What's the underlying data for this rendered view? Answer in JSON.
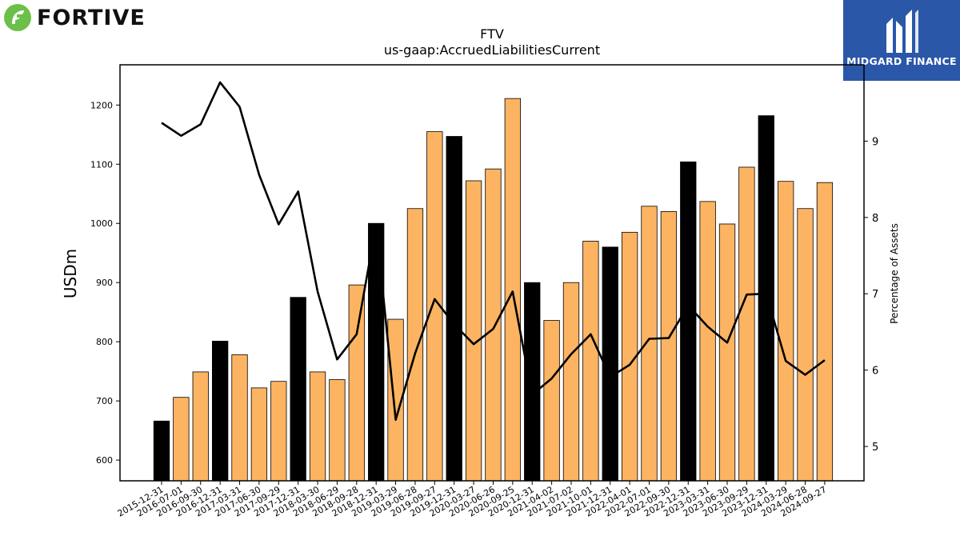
{
  "brand_left": {
    "name": "FORTIVE",
    "icon": "fortive-leaf-icon",
    "icon_color": "#6cc04a"
  },
  "brand_right": {
    "name": "MIDGARD FINANCE",
    "icon": "midgard-m-icon",
    "bg_color": "#2b57a8"
  },
  "chart_data": {
    "type": "bar",
    "title": "FTV",
    "subtitle": "us-gaap:AccruedLiabilitiesCurrent",
    "ylabel": "USDm",
    "y2label": "Percentage of Assets",
    "ylim": [
      565,
      1268
    ],
    "y2lim": [
      4.55,
      10.0
    ],
    "yticks": [
      600,
      700,
      800,
      900,
      1000,
      1100,
      1200
    ],
    "y2ticks": [
      5,
      6,
      7,
      8,
      9
    ],
    "colors": {
      "annual": "#000000",
      "quarter": "#fdb462",
      "line": "#000000"
    },
    "categories": [
      "2015-12-31",
      "2016-07-01",
      "2016-09-30",
      "2016-12-31",
      "2017-03-31",
      "2017-06-30",
      "2017-09-29",
      "2017-12-31",
      "2018-03-30",
      "2018-06-29",
      "2018-09-28",
      "2018-12-31",
      "2019-03-29",
      "2019-06-28",
      "2019-09-27",
      "2019-12-31",
      "2020-03-27",
      "2020-06-26",
      "2020-09-25",
      "2020-12-31",
      "2021-04-02",
      "2021-07-02",
      "2021-10-01",
      "2021-12-31",
      "2022-04-01",
      "2022-07-01",
      "2022-09-30",
      "2022-12-31",
      "2023-03-31",
      "2023-06-30",
      "2023-09-29",
      "2023-12-31",
      "2024-03-29",
      "2024-06-28",
      "2024-09-27"
    ],
    "series": [
      {
        "type": "bar",
        "values": [
          666,
          706,
          749,
          801,
          778,
          722,
          733,
          875,
          749,
          736,
          896,
          1000,
          838,
          1025,
          1155,
          1147,
          1072,
          1092,
          1211,
          900,
          836,
          900,
          970,
          960,
          985,
          1029,
          1020,
          1104,
          1037,
          999,
          1095,
          1182,
          1071,
          1025,
          1069
        ],
        "annual_flags": [
          1,
          0,
          0,
          1,
          0,
          0,
          0,
          1,
          0,
          0,
          0,
          1,
          0,
          0,
          0,
          1,
          0,
          0,
          0,
          1,
          0,
          0,
          0,
          1,
          0,
          0,
          0,
          1,
          0,
          0,
          0,
          1,
          0,
          0,
          0
        ]
      },
      {
        "type": "line",
        "axis": "right",
        "values": [
          9.24,
          9.07,
          9.22,
          9.77,
          9.45,
          8.56,
          7.91,
          8.34,
          7.03,
          6.14,
          6.47,
          7.91,
          5.35,
          6.22,
          6.93,
          6.6,
          6.34,
          6.54,
          7.03,
          5.68,
          5.89,
          6.21,
          6.47,
          5.91,
          6.07,
          6.41,
          6.42,
          6.85,
          6.57,
          6.36,
          6.99,
          7.0,
          6.12,
          5.94,
          6.13
        ]
      }
    ]
  }
}
